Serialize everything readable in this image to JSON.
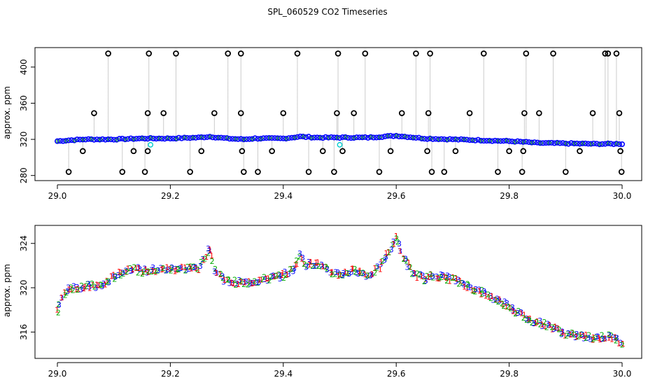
{
  "title": "SPL_060529  CO2 Timeseries",
  "colors": {
    "frame": "#000000",
    "outlier_circle": "#000000",
    "blue_series": "#0000ff",
    "green_series": "#00aa00",
    "red_series": "#ff0000",
    "cyan_series": "#00cccc",
    "spike_line": "#999999"
  },
  "chart_data": [
    {
      "type": "scatter",
      "name": "top-panel",
      "title": "",
      "xlabel": "",
      "ylabel": "approx. ppm",
      "xlim": [
        29.0,
        30.0
      ],
      "ylim": [
        279,
        420
      ],
      "xticks": [
        29.0,
        29.2,
        29.4,
        29.6,
        29.8,
        30.0
      ],
      "xtick_labels": [
        "29.0",
        "29.2",
        "29.4",
        "29.6",
        "29.8",
        "30.0"
      ],
      "yticks": [
        280,
        320,
        360,
        400
      ],
      "ytick_labels": [
        "280",
        "320",
        "360",
        "400"
      ],
      "baseline": [
        [
          29.0,
          318
        ],
        [
          29.02,
          319
        ],
        [
          29.05,
          320
        ],
        [
          29.1,
          320
        ],
        [
          29.15,
          321
        ],
        [
          29.2,
          321
        ],
        [
          29.25,
          322
        ],
        [
          29.27,
          323
        ],
        [
          29.3,
          321
        ],
        [
          29.33,
          320
        ],
        [
          29.35,
          321
        ],
        [
          29.4,
          321
        ],
        [
          29.43,
          323
        ],
        [
          29.46,
          322
        ],
        [
          29.5,
          322
        ],
        [
          29.55,
          322
        ],
        [
          29.6,
          324
        ],
        [
          29.65,
          321
        ],
        [
          29.7,
          320
        ],
        [
          29.75,
          319
        ],
        [
          29.8,
          318
        ],
        [
          29.83,
          317
        ],
        [
          29.85,
          316
        ],
        [
          29.9,
          315.5
        ],
        [
          29.95,
          315
        ],
        [
          30.0,
          315
        ]
      ],
      "outliers": [
        [
          29.02,
          284
        ],
        [
          29.045,
          307
        ],
        [
          29.065,
          349
        ],
        [
          29.09,
          415
        ],
        [
          29.115,
          284
        ],
        [
          29.135,
          307
        ],
        [
          29.155,
          284
        ],
        [
          29.16,
          307
        ],
        [
          29.16,
          349
        ],
        [
          29.162,
          415
        ],
        [
          29.188,
          349
        ],
        [
          29.21,
          415
        ],
        [
          29.235,
          284
        ],
        [
          29.255,
          307
        ],
        [
          29.278,
          349
        ],
        [
          29.302,
          415
        ],
        [
          29.325,
          415
        ],
        [
          29.325,
          349
        ],
        [
          29.327,
          307
        ],
        [
          29.33,
          284
        ],
        [
          29.355,
          284
        ],
        [
          29.38,
          307
        ],
        [
          29.4,
          349
        ],
        [
          29.425,
          415
        ],
        [
          29.445,
          284
        ],
        [
          29.47,
          307
        ],
        [
          29.49,
          284
        ],
        [
          29.495,
          349
        ],
        [
          29.497,
          415
        ],
        [
          29.505,
          307
        ],
        [
          29.525,
          349
        ],
        [
          29.545,
          415
        ],
        [
          29.57,
          284
        ],
        [
          29.59,
          307
        ],
        [
          29.61,
          349
        ],
        [
          29.635,
          415
        ],
        [
          29.655,
          307
        ],
        [
          29.657,
          349
        ],
        [
          29.66,
          415
        ],
        [
          29.663,
          284
        ],
        [
          29.685,
          284
        ],
        [
          29.705,
          307
        ],
        [
          29.73,
          349
        ],
        [
          29.755,
          415
        ],
        [
          29.78,
          284
        ],
        [
          29.8,
          307
        ],
        [
          29.823,
          284
        ],
        [
          29.825,
          307
        ],
        [
          29.827,
          349
        ],
        [
          29.83,
          415
        ],
        [
          29.853,
          349
        ],
        [
          29.878,
          415
        ],
        [
          29.9,
          284
        ],
        [
          29.925,
          307
        ],
        [
          29.948,
          349
        ],
        [
          29.97,
          415
        ],
        [
          29.975,
          415
        ],
        [
          29.99,
          415
        ],
        [
          29.995,
          349
        ],
        [
          29.997,
          307
        ],
        [
          29.999,
          284
        ]
      ],
      "cyan_points": [
        [
          29.165,
          314
        ],
        [
          29.5,
          314
        ]
      ]
    },
    {
      "type": "scatter",
      "name": "bottom-panel",
      "title": "",
      "xlabel": "",
      "ylabel": "approx. ppm",
      "xlim": [
        29.0,
        30.0
      ],
      "ylim": [
        314,
        325.5
      ],
      "xticks": [
        29.0,
        29.2,
        29.4,
        29.6,
        29.8,
        30.0
      ],
      "xtick_labels": [
        "29.0",
        "29.2",
        "29.4",
        "29.6",
        "29.8",
        "30.0"
      ],
      "yticks": [
        316,
        320,
        324
      ],
      "ytick_labels": [
        "316",
        "320",
        "324"
      ],
      "series_keypoints": [
        [
          29.0,
          318
        ],
        [
          29.01,
          319.2
        ],
        [
          29.02,
          320
        ],
        [
          29.05,
          320.1
        ],
        [
          29.08,
          320.2
        ],
        [
          29.1,
          321
        ],
        [
          29.13,
          321.8
        ],
        [
          29.15,
          321.5
        ],
        [
          29.17,
          321.6
        ],
        [
          29.2,
          321.7
        ],
        [
          29.25,
          321.8
        ],
        [
          29.26,
          322.5
        ],
        [
          29.27,
          323.8
        ],
        [
          29.28,
          321.5
        ],
        [
          29.3,
          320.6
        ],
        [
          29.33,
          320.4
        ],
        [
          29.35,
          320.6
        ],
        [
          29.4,
          321.1
        ],
        [
          29.42,
          321.8
        ],
        [
          29.43,
          323
        ],
        [
          29.44,
          322.1
        ],
        [
          29.46,
          322.2
        ],
        [
          29.48,
          321.5
        ],
        [
          29.5,
          321.2
        ],
        [
          29.53,
          321.6
        ],
        [
          29.55,
          321.1
        ],
        [
          29.57,
          321.8
        ],
        [
          29.59,
          323.5
        ],
        [
          29.6,
          324.6
        ],
        [
          29.61,
          323
        ],
        [
          29.63,
          321.3
        ],
        [
          29.65,
          320.8
        ],
        [
          29.67,
          321.1
        ],
        [
          29.7,
          320.8
        ],
        [
          29.75,
          319.6
        ],
        [
          29.8,
          318.4
        ],
        [
          29.83,
          317.2
        ],
        [
          29.85,
          316.9
        ],
        [
          29.88,
          316.4
        ],
        [
          29.9,
          315.8
        ],
        [
          29.95,
          315.5
        ],
        [
          29.98,
          315.6
        ],
        [
          30.0,
          315.1
        ]
      ],
      "marker_labels": [
        "1",
        "2",
        "3"
      ],
      "marker_colors": {
        "1": "#ff0000",
        "2": "#00aa00",
        "3": "#0000ff"
      }
    }
  ]
}
